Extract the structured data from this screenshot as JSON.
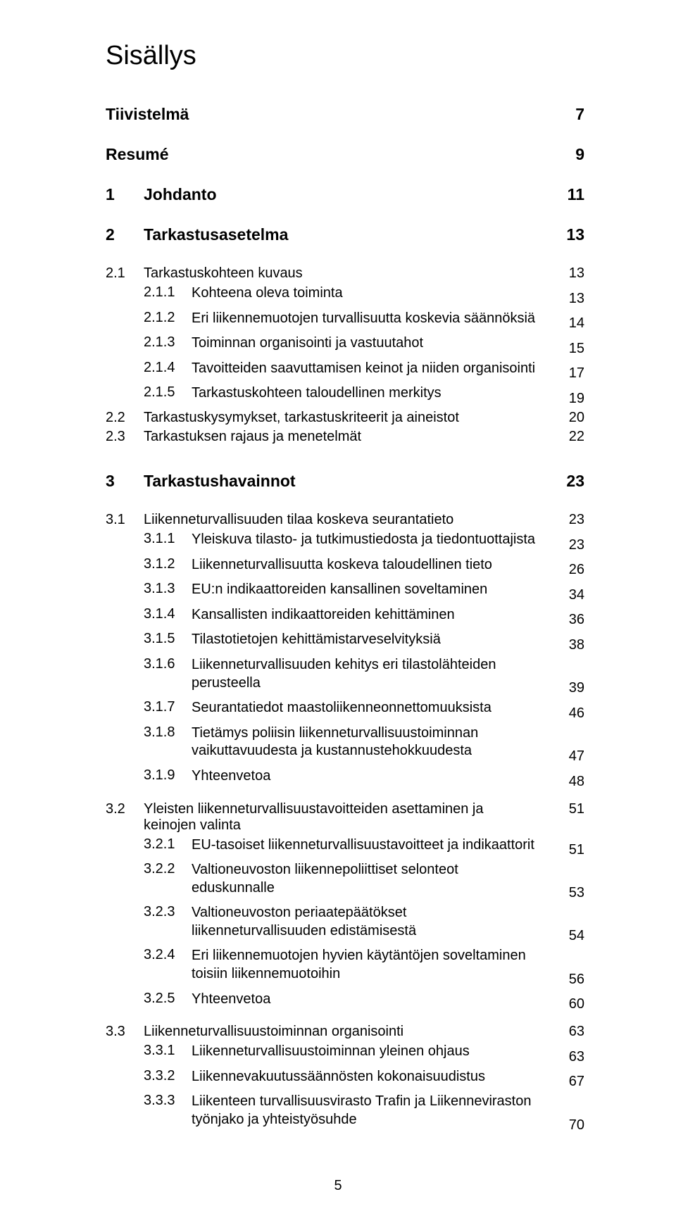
{
  "title": "Sisällys",
  "footer_page": "5",
  "entries": [
    {
      "type": "h2",
      "label": "Tiivistelmä",
      "page": "7"
    },
    {
      "type": "h2",
      "label": "Resumé",
      "page": "9"
    },
    {
      "type": "h2num",
      "num": "1",
      "label": "Johdanto",
      "page": "11"
    },
    {
      "type": "h2num",
      "num": "2",
      "label": "Tarkastusasetelma",
      "page": "13"
    },
    {
      "type": "l1",
      "num": "2.1",
      "label": "Tarkastuskohteen kuvaus",
      "page": "13"
    },
    {
      "type": "l2",
      "num": "2.1.1",
      "label": "Kohteena oleva toiminta",
      "page": "13"
    },
    {
      "type": "l2",
      "num": "2.1.2",
      "label": "Eri liikennemuotojen turvallisuutta koskevia säännöksiä",
      "page": "14"
    },
    {
      "type": "l2",
      "num": "2.1.3",
      "label": "Toiminnan organisointi ja vastuutahot",
      "page": "15"
    },
    {
      "type": "l2",
      "num": "2.1.4",
      "label": "Tavoitteiden saavuttamisen keinot ja niiden organisointi",
      "page": "17"
    },
    {
      "type": "l2",
      "num": "2.1.5",
      "label": "Tarkastuskohteen taloudellinen merkitys",
      "page": "19"
    },
    {
      "type": "l1",
      "num": "2.2",
      "label": "Tarkastuskysymykset, tarkastuskriteerit ja aineistot",
      "page": "20"
    },
    {
      "type": "l1",
      "num": "2.3",
      "label": "Tarkastuksen rajaus ja menetelmät",
      "page": "22"
    },
    {
      "type": "gap-l"
    },
    {
      "type": "h2num",
      "num": "3",
      "label": "Tarkastushavainnot",
      "page": "23"
    },
    {
      "type": "l1",
      "num": "3.1",
      "label": "Liikenneturvallisuuden tilaa koskeva seurantatieto",
      "page": "23"
    },
    {
      "type": "l2",
      "num": "3.1.1",
      "label": "Yleiskuva tilasto- ja tutkimustiedosta ja tiedontuottajista",
      "page": "23"
    },
    {
      "type": "l2",
      "num": "3.1.2",
      "label": "Liikenneturvallisuutta koskeva taloudellinen tieto",
      "page": "26"
    },
    {
      "type": "l2",
      "num": "3.1.3",
      "label": "EU:n indikaattoreiden kansallinen soveltaminen",
      "page": "34"
    },
    {
      "type": "l2",
      "num": "3.1.4",
      "label": "Kansallisten indikaattoreiden kehittäminen",
      "page": "36"
    },
    {
      "type": "l2",
      "num": "3.1.5",
      "label": "Tilastotietojen kehittämistarveselvityksiä",
      "page": "38"
    },
    {
      "type": "l2",
      "num": "3.1.6",
      "label": "Liikenneturvallisuuden kehitys eri tilastolähteiden perusteella",
      "page": "39"
    },
    {
      "type": "l2",
      "num": "3.1.7",
      "label": "Seurantatiedot maastoliikenneonnettomuuksista",
      "page": "46"
    },
    {
      "type": "l2",
      "num": "3.1.8",
      "label": "Tietämys poliisin liikenneturvallisuustoiminnan vaikuttavuudesta ja kustannustehokkuudesta",
      "page": "47"
    },
    {
      "type": "l2",
      "num": "3.1.9",
      "label": "Yhteenvetoa",
      "page": "48"
    },
    {
      "type": "gap-s"
    },
    {
      "type": "l1",
      "num": "3.2",
      "label": "Yleisten liikenneturvallisuustavoitteiden asettaminen ja keinojen valinta",
      "page": "51"
    },
    {
      "type": "l2",
      "num": "3.2.1",
      "label": "EU-tasoiset liikenneturvallisuustavoitteet ja indikaattorit",
      "page": "51"
    },
    {
      "type": "l2",
      "num": "3.2.2",
      "label": "Valtioneuvoston liikennepoliittiset selonteot eduskunnalle",
      "page": "53"
    },
    {
      "type": "l2",
      "num": "3.2.3",
      "label": "Valtioneuvoston periaatepäätökset liikenneturvallisuuden edistämisestä",
      "page": "54"
    },
    {
      "type": "l2",
      "num": "3.2.4",
      "label": "Eri liikennemuotojen hyvien käytäntöjen soveltaminen toisiin liikennemuotoihin",
      "page": "56"
    },
    {
      "type": "l2",
      "num": "3.2.5",
      "label": "Yhteenvetoa",
      "page": "60"
    },
    {
      "type": "gap-s"
    },
    {
      "type": "l1",
      "num": "3.3",
      "label": "Liikenneturvallisuustoiminnan organisointi",
      "page": "63"
    },
    {
      "type": "l2",
      "num": "3.3.1",
      "label": "Liikenneturvallisuustoiminnan yleinen ohjaus",
      "page": "63"
    },
    {
      "type": "l2",
      "num": "3.3.2",
      "label": "Liikennevakuutussäännösten kokonaisuudistus",
      "page": "67"
    },
    {
      "type": "l2",
      "num": "3.3.3",
      "label": "Liikenteen turvallisuusvirasto Trafin ja Liikenneviraston työnjako ja yhteistyösuhde",
      "page": "70"
    }
  ]
}
